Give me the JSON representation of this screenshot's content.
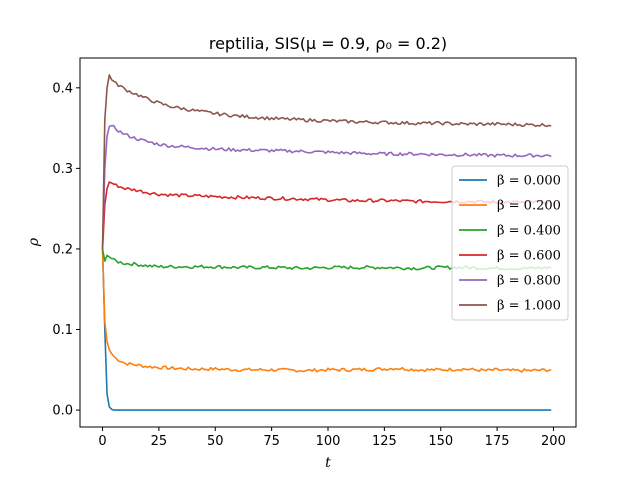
{
  "chart_data": {
    "type": "line",
    "title": "reptilia, SIS(μ = 0.9, ρ₀ = 0.2)",
    "xlabel": "t",
    "ylabel": "ρ",
    "xlim": [
      -10,
      210
    ],
    "ylim": [
      -0.021,
      0.437
    ],
    "xticks": [
      0,
      25,
      50,
      75,
      100,
      125,
      150,
      175,
      200
    ],
    "yticks": [
      0.0,
      0.1,
      0.2,
      0.3,
      0.4
    ],
    "xtick_labels": [
      "0",
      "25",
      "50",
      "75",
      "100",
      "125",
      "150",
      "175",
      "200"
    ],
    "ytick_labels": [
      "0.0",
      "0.1",
      "0.2",
      "0.3",
      "0.4"
    ],
    "grid": false,
    "legend_position": "right",
    "series": [
      {
        "name": "β = 0.000",
        "color": "#1f77b4",
        "x": [
          0,
          1,
          2,
          3,
          4,
          5,
          10,
          50,
          100,
          150,
          199
        ],
        "values": [
          0.2,
          0.1,
          0.02,
          0.004,
          0.001,
          0.0,
          0.0,
          0.0,
          0.0,
          0.0,
          0.0
        ]
      },
      {
        "name": "β = 0.200",
        "color": "#ff7f0e",
        "x": [
          0,
          1,
          2,
          3,
          4,
          5,
          6,
          8,
          10,
          15,
          20,
          25,
          30,
          40,
          50,
          60,
          75,
          90,
          100,
          110,
          125,
          130,
          140,
          150,
          160,
          170,
          175,
          180,
          190,
          199
        ],
        "values": [
          0.2,
          0.11,
          0.085,
          0.075,
          0.07,
          0.067,
          0.064,
          0.061,
          0.058,
          0.056,
          0.054,
          0.053,
          0.052,
          0.051,
          0.051,
          0.05,
          0.05,
          0.049,
          0.05,
          0.05,
          0.051,
          0.052,
          0.05,
          0.05,
          0.051,
          0.049,
          0.05,
          0.049,
          0.049,
          0.05
        ]
      },
      {
        "name": "β = 0.400",
        "color": "#2ca02c",
        "x": [
          0,
          1,
          2,
          3,
          5,
          7,
          10,
          15,
          20,
          25,
          30,
          40,
          50,
          60,
          75,
          90,
          100,
          110,
          125,
          140,
          150,
          160,
          175,
          190,
          199
        ],
        "values": [
          0.2,
          0.185,
          0.192,
          0.19,
          0.186,
          0.184,
          0.182,
          0.181,
          0.179,
          0.178,
          0.178,
          0.178,
          0.178,
          0.177,
          0.177,
          0.176,
          0.177,
          0.177,
          0.177,
          0.176,
          0.177,
          0.177,
          0.176,
          0.176,
          0.177
        ]
      },
      {
        "name": "β = 0.600",
        "color": "#d62728",
        "x": [
          0,
          1,
          2,
          3,
          4,
          6,
          8,
          10,
          15,
          20,
          25,
          30,
          40,
          50,
          60,
          75,
          90,
          100,
          110,
          125,
          140,
          150,
          160,
          175,
          190,
          199
        ],
        "values": [
          0.2,
          0.255,
          0.275,
          0.283,
          0.282,
          0.279,
          0.277,
          0.275,
          0.273,
          0.27,
          0.268,
          0.267,
          0.266,
          0.265,
          0.264,
          0.263,
          0.262,
          0.261,
          0.26,
          0.26,
          0.259,
          0.259,
          0.259,
          0.258,
          0.258,
          0.258
        ]
      },
      {
        "name": "β = 0.800",
        "color": "#9467bd",
        "x": [
          0,
          1,
          2,
          3,
          4,
          6,
          8,
          10,
          15,
          20,
          25,
          30,
          40,
          50,
          60,
          75,
          90,
          100,
          110,
          125,
          140,
          150,
          160,
          175,
          190,
          199
        ],
        "values": [
          0.2,
          0.3,
          0.34,
          0.352,
          0.353,
          0.349,
          0.345,
          0.342,
          0.337,
          0.333,
          0.33,
          0.328,
          0.326,
          0.324,
          0.323,
          0.322,
          0.321,
          0.32,
          0.319,
          0.318,
          0.318,
          0.317,
          0.317,
          0.316,
          0.316,
          0.316
        ]
      },
      {
        "name": "β = 1.000",
        "color": "#8c564b",
        "x": [
          0,
          1,
          2,
          3,
          4,
          6,
          8,
          10,
          15,
          20,
          25,
          30,
          40,
          50,
          60,
          75,
          90,
          100,
          110,
          125,
          140,
          150,
          160,
          175,
          190,
          199
        ],
        "values": [
          0.2,
          0.36,
          0.4,
          0.416,
          0.41,
          0.405,
          0.402,
          0.398,
          0.392,
          0.386,
          0.381,
          0.377,
          0.372,
          0.368,
          0.365,
          0.362,
          0.36,
          0.359,
          0.358,
          0.357,
          0.356,
          0.356,
          0.355,
          0.355,
          0.354,
          0.354
        ]
      }
    ]
  }
}
